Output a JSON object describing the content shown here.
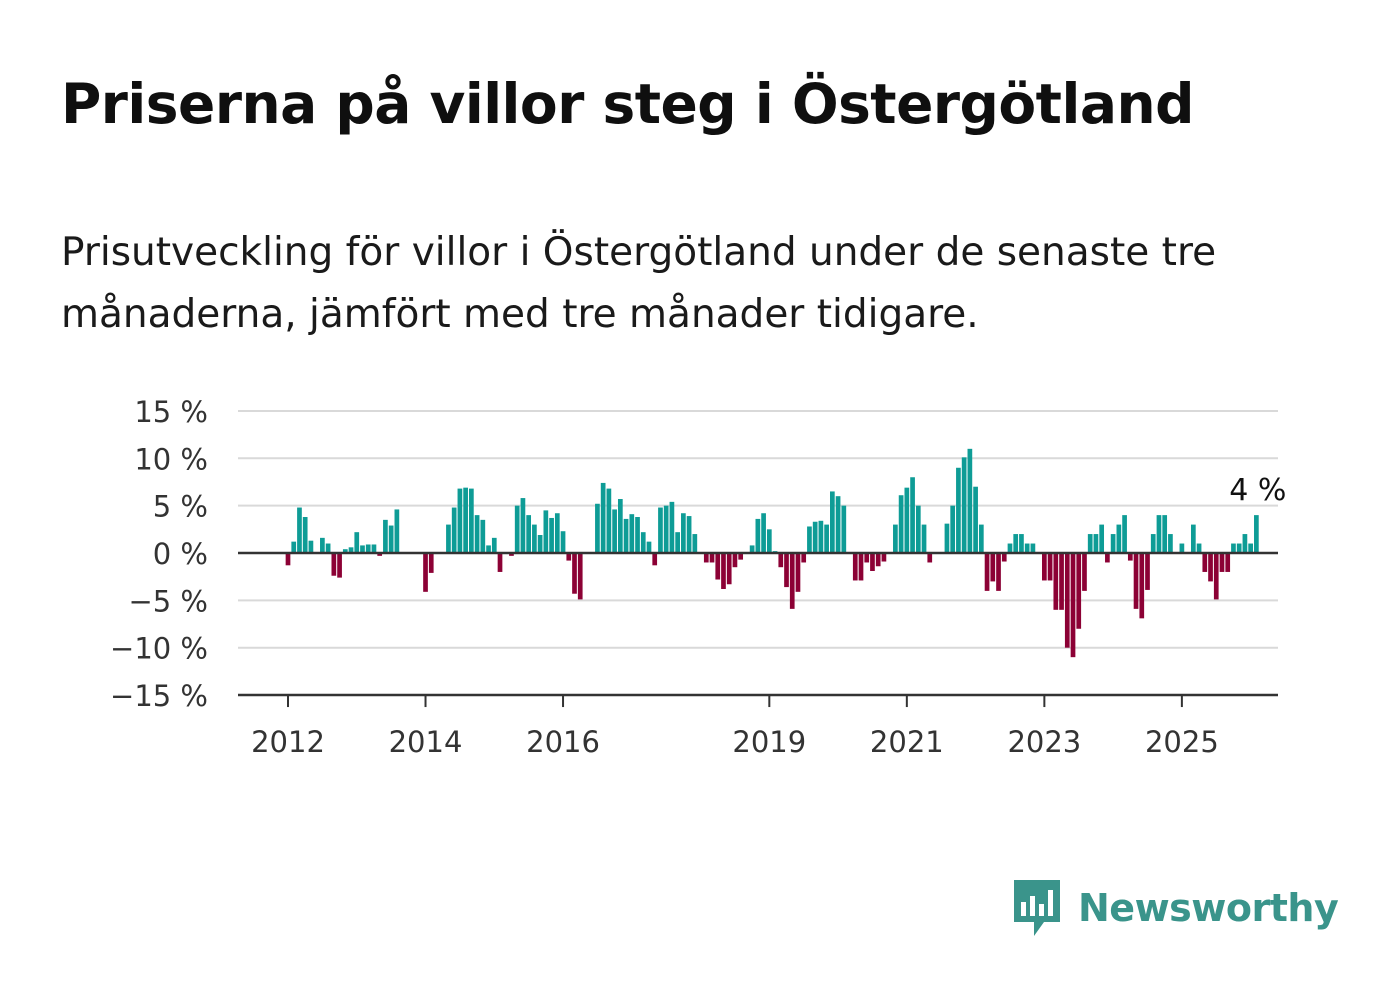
{
  "title": "Priserna på villor steg i Östergötland",
  "subtitle": "Prisutveckling för villor i Östergötland under de senaste tre månaderna, jämfört med tre månader tidigare.",
  "brand": {
    "name": "Newsworthy",
    "color": "#3a948b"
  },
  "colors": {
    "positive": "#0e9c96",
    "negative": "#8c0135",
    "grid": "#d9d9d9",
    "axis": "#333333"
  },
  "chart_data": {
    "type": "bar",
    "x_start": "2012-01",
    "x_step": "1 month",
    "ylim": [
      -15,
      15
    ],
    "y_ticks": [
      15,
      10,
      5,
      0,
      -5,
      -10,
      -15
    ],
    "y_tick_labels": [
      "15 %",
      "10 %",
      "5 %",
      "0 %",
      "−5 %",
      "−10 %",
      "−15 %"
    ],
    "x_tick_labels": [
      "2012",
      "2014",
      "2016",
      "2019",
      "2021",
      "2023",
      "2025"
    ],
    "x_tick_years": [
      2012,
      2014,
      2016,
      2019,
      2021,
      2023,
      2025
    ],
    "last_value_label": "4 %",
    "values": [
      -1.3,
      1.2,
      4.8,
      3.8,
      1.3,
      0,
      1.6,
      1.0,
      -2.4,
      -2.6,
      0.4,
      0.6,
      2.2,
      0.8,
      0.9,
      0.9,
      -0.3,
      3.5,
      2.9,
      4.6,
      0,
      0,
      0,
      0,
      -4.1,
      -2.1,
      0,
      0,
      3.0,
      4.8,
      6.8,
      6.9,
      6.8,
      4.0,
      3.5,
      0.8,
      1.6,
      -2.0,
      0,
      -0.3,
      5.0,
      5.8,
      4.0,
      3.0,
      1.9,
      4.5,
      3.7,
      4.2,
      2.3,
      -0.8,
      -4.3,
      -4.9,
      0,
      0,
      5.2,
      7.4,
      6.8,
      4.6,
      5.7,
      3.6,
      4.1,
      3.8,
      2.2,
      1.2,
      -1.3,
      4.8,
      5.0,
      5.4,
      2.2,
      4.2,
      3.9,
      2.0,
      0,
      -1.0,
      -1.0,
      -2.8,
      -3.8,
      -3.3,
      -1.5,
      -0.7,
      0,
      0.8,
      3.6,
      4.2,
      2.5,
      0.2,
      -1.5,
      -3.6,
      -5.9,
      -4.1,
      -1.0,
      2.8,
      3.3,
      3.4,
      3.0,
      6.5,
      6.0,
      5.0,
      0,
      -2.9,
      -2.9,
      -1.0,
      -1.9,
      -1.4,
      -0.9,
      0,
      3.0,
      6.1,
      6.9,
      8.0,
      5.0,
      3.0,
      -1.0,
      0,
      0,
      3.1,
      5.0,
      9.0,
      10.1,
      11.0,
      7.0,
      3.0,
      -4.0,
      -3.0,
      -4.0,
      -0.9,
      1.0,
      2.0,
      2.0,
      1.0,
      1.0,
      0,
      -2.9,
      -2.9,
      -6.0,
      -6.0,
      -10.0,
      -11.0,
      -8.0,
      -4.0,
      2.0,
      2.0,
      3.0,
      -1.0,
      2.0,
      3.0,
      4.0,
      -0.8,
      -5.9,
      -6.9,
      -3.9,
      2.0,
      4.0,
      4.0,
      2.0,
      0,
      1.0,
      0,
      3.0,
      1.0,
      -2.0,
      -3.0,
      -4.9,
      -2.0,
      -2.0,
      1.0,
      1.0,
      2.0,
      1.0,
      4.0
    ]
  }
}
